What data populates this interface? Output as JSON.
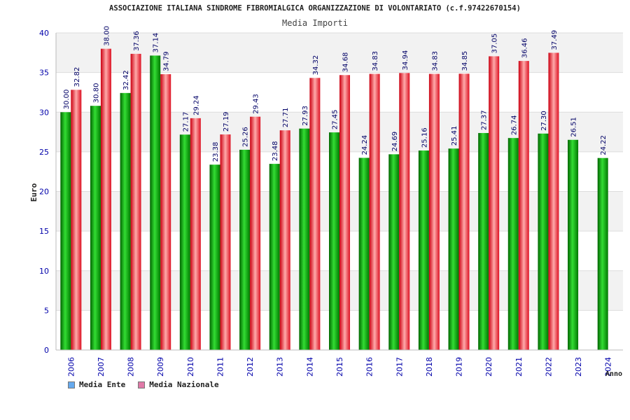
{
  "chart_data": {
    "type": "bar",
    "title": "ASSOCIAZIONE ITALIANA SINDROME FIBROMIALGICA ORGANIZZAZIONE DI VOLONTARIATO (c.f.97422670154)",
    "subtitle": "Media Importi",
    "xlabel": "Anno",
    "ylabel": "Euro",
    "ylim": [
      0,
      40
    ],
    "yticks": [
      0,
      5,
      10,
      15,
      20,
      25,
      30,
      35,
      40
    ],
    "grid": true,
    "legend_position": "bottom-left",
    "categories": [
      "2006",
      "2007",
      "2008",
      "2009",
      "2010",
      "2011",
      "2012",
      "2013",
      "2014",
      "2015",
      "2016",
      "2017",
      "2018",
      "2019",
      "2020",
      "2021",
      "2022",
      "2023",
      "2024"
    ],
    "series": [
      {
        "name": "Media Ente",
        "color": "#00aa00",
        "legend_color": "#66aaee",
        "values": [
          30.0,
          30.8,
          32.42,
          37.14,
          27.17,
          23.38,
          25.26,
          23.48,
          27.93,
          27.45,
          24.24,
          24.69,
          25.16,
          25.41,
          27.37,
          26.74,
          27.3,
          26.51,
          24.22
        ],
        "labels": [
          "30.00",
          "30.80",
          "32.42",
          "37.14",
          "27.17",
          "23.38",
          "25.26",
          "23.48",
          "27.93",
          "27.45",
          "24.24",
          "24.69",
          "25.16",
          "25.41",
          "27.37",
          "26.74",
          "27.30",
          "26.51",
          "24.22"
        ]
      },
      {
        "name": "Media Nazionale",
        "color": "#ee2233",
        "legend_color": "#e07aa8",
        "values": [
          32.82,
          38.0,
          37.36,
          34.79,
          29.24,
          27.19,
          29.43,
          27.71,
          34.32,
          34.68,
          34.83,
          34.94,
          34.83,
          34.85,
          37.05,
          36.46,
          37.49,
          null,
          null
        ],
        "labels": [
          "32.82",
          "38.00",
          "37.36",
          "34.79",
          "29.24",
          "27.19",
          "29.43",
          "27.71",
          "34.32",
          "34.68",
          "34.83",
          "34.94",
          "34.83",
          "34.85",
          "37.05",
          "36.46",
          "37.49",
          "",
          ""
        ]
      }
    ]
  }
}
